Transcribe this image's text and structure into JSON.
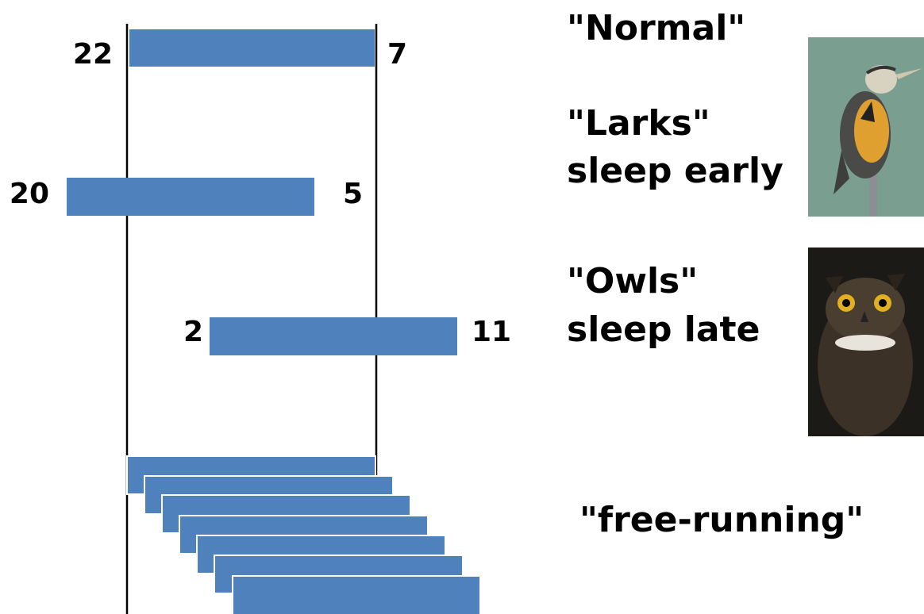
{
  "rows": [
    {
      "title": "\"Normal\"",
      "start": 22,
      "end": 7
    },
    {
      "title": "\"Larks\"",
      "subtitle": "sleep early",
      "start": 20,
      "end": 5
    },
    {
      "title": "\"Owls\"",
      "subtitle": "sleep late",
      "start": 2,
      "end": 11
    }
  ],
  "free_running": {
    "title": "\"free-running\""
  }
}
